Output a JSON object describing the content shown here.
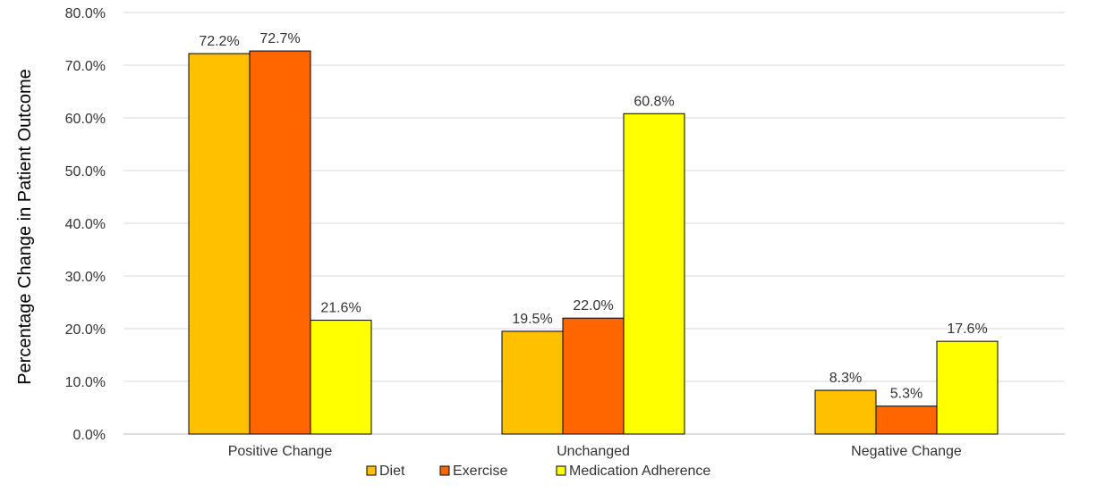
{
  "chart_data": {
    "type": "bar",
    "ylabel": "Percentage Change in Patient Outcome",
    "xlabel": "",
    "categories": [
      "Positive Change",
      "Unchanged",
      "Negative Change"
    ],
    "series": [
      {
        "name": "Diet",
        "values": [
          72.2,
          19.5,
          8.3
        ],
        "color": "#FFC000"
      },
      {
        "name": "Exercise",
        "values": [
          72.7,
          22.0,
          5.3
        ],
        "color": "#FF6600"
      },
      {
        "name": "Medication Adherence",
        "values": [
          21.6,
          60.8,
          17.6
        ],
        "color": "#FFFF00"
      }
    ],
    "data_labels": [
      [
        "72.2%",
        "19.5%",
        "8.3%"
      ],
      [
        "72.7%",
        "22.0%",
        "5.3%"
      ],
      [
        "21.6%",
        "60.8%",
        "17.6%"
      ]
    ],
    "y_tick_labels": [
      "0.0%",
      "10.0%",
      "20.0%",
      "30.0%",
      "40.0%",
      "50.0%",
      "60.0%",
      "70.0%",
      "80.0%"
    ],
    "ylim": [
      0,
      80
    ],
    "y_tick_step": 10,
    "grid": true,
    "legend_position": "bottom",
    "bar_outline_color": "#000000",
    "grid_color": "#D9D9D9"
  }
}
